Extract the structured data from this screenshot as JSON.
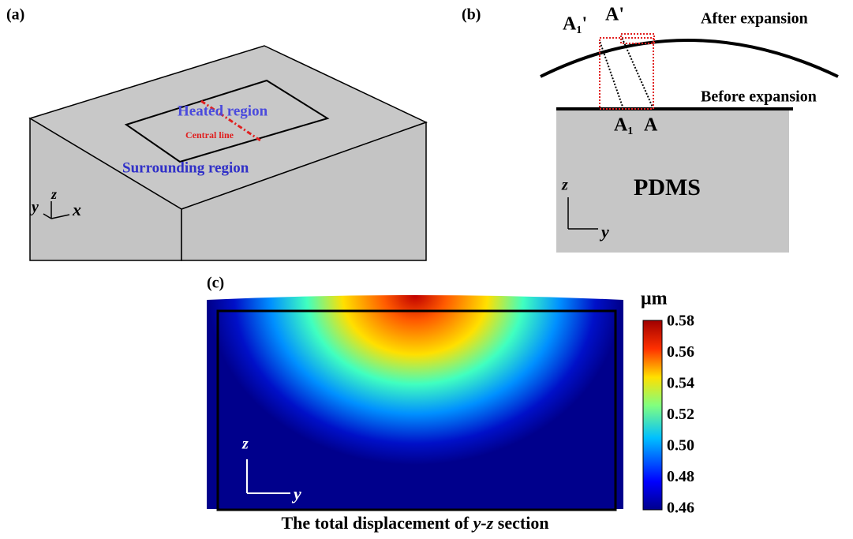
{
  "panel_a": {
    "label": "(a)",
    "heated": "Heated region",
    "central": "Central line",
    "surrounding": "Surrounding region",
    "axis_y": "y",
    "axis_z": "z",
    "axis_x": "x"
  },
  "panel_b": {
    "label": "(b)",
    "after": "After expansion",
    "before": "Before expansion",
    "material": "PDMS",
    "point_a1_after": "A₁'",
    "point_a_after": "A'",
    "point_a1": "A₁",
    "point_a": "A",
    "axis_z": "z",
    "axis_y": "y"
  },
  "panel_c": {
    "label": "(c)",
    "unit": "μm",
    "colorbar_ticks": [
      "0.58",
      "0.56",
      "0.54",
      "0.52",
      "0.50",
      "0.48",
      "0.46"
    ],
    "axis_z": "z",
    "axis_y": "y",
    "caption_start": "The total displacement of ",
    "caption_italic": "y-z",
    "caption_end": " section"
  }
}
